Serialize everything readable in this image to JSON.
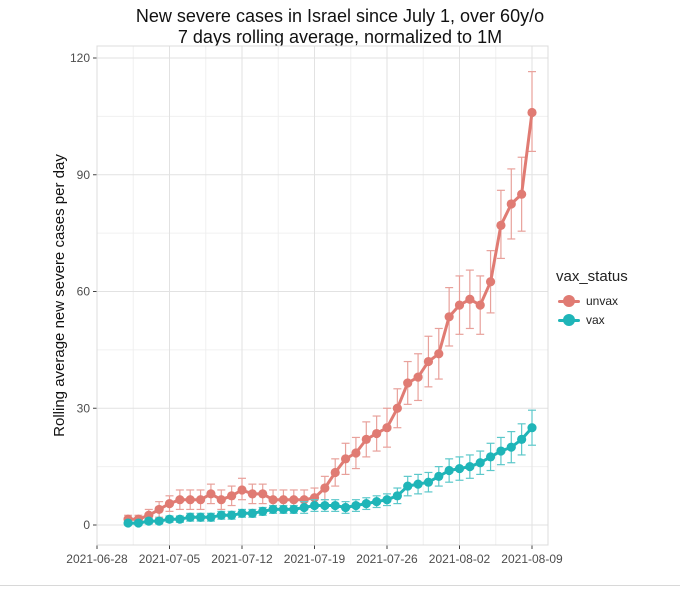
{
  "chart_data": {
    "type": "line",
    "title_lines": [
      "New severe cases in Israel since July 1, over 60y/o",
      "7 days rolling average, normalized to 1M"
    ],
    "xlabel": "",
    "ylabel": "Rolling average new severe cases per day",
    "xlim": [
      "2021-06-28",
      "2021-08-09"
    ],
    "ylim": [
      0,
      120
    ],
    "x_ticks": [
      "2021-06-28",
      "2021-07-05",
      "2021-07-12",
      "2021-07-19",
      "2021-07-26",
      "2021-08-02",
      "2021-08-09"
    ],
    "y_ticks": [
      0,
      30,
      60,
      90,
      120
    ],
    "grid": true,
    "legend": {
      "title": "vax_status",
      "placement": "right"
    },
    "series": [
      {
        "name": "unvax",
        "color": "#e07b73",
        "points": [
          {
            "x": "2021-07-01",
            "y": 1.5,
            "lo": 0.5,
            "hi": 2.5
          },
          {
            "x": "2021-07-02",
            "y": 1.5,
            "lo": 0.5,
            "hi": 2.5
          },
          {
            "x": "2021-07-03",
            "y": 2.5,
            "lo": 1.0,
            "hi": 4.0
          },
          {
            "x": "2021-07-04",
            "y": 4,
            "lo": 2.0,
            "hi": 6.0
          },
          {
            "x": "2021-07-05",
            "y": 5.5,
            "lo": 3.5,
            "hi": 7.5
          },
          {
            "x": "2021-07-06",
            "y": 6.5,
            "lo": 4.0,
            "hi": 9.0
          },
          {
            "x": "2021-07-07",
            "y": 6.5,
            "lo": 4.0,
            "hi": 9.0
          },
          {
            "x": "2021-07-08",
            "y": 6.5,
            "lo": 4.0,
            "hi": 9.0
          },
          {
            "x": "2021-07-09",
            "y": 8,
            "lo": 5.5,
            "hi": 10.5
          },
          {
            "x": "2021-07-10",
            "y": 6.5,
            "lo": 4.0,
            "hi": 9.0
          },
          {
            "x": "2021-07-11",
            "y": 7.5,
            "lo": 5.0,
            "hi": 10.0
          },
          {
            "x": "2021-07-12",
            "y": 9,
            "lo": 6.5,
            "hi": 12.0
          },
          {
            "x": "2021-07-13",
            "y": 8,
            "lo": 5.5,
            "hi": 10.5
          },
          {
            "x": "2021-07-14",
            "y": 8,
            "lo": 5.5,
            "hi": 10.5
          },
          {
            "x": "2021-07-15",
            "y": 6.5,
            "lo": 4.0,
            "hi": 9.0
          },
          {
            "x": "2021-07-16",
            "y": 6.5,
            "lo": 4.0,
            "hi": 9.0
          },
          {
            "x": "2021-07-17",
            "y": 6.5,
            "lo": 4.0,
            "hi": 9.0
          },
          {
            "x": "2021-07-18",
            "y": 6.5,
            "lo": 4.0,
            "hi": 9.0
          },
          {
            "x": "2021-07-19",
            "y": 7,
            "lo": 4.5,
            "hi": 9.5
          },
          {
            "x": "2021-07-20",
            "y": 9.5,
            "lo": 6.5,
            "hi": 12.5
          },
          {
            "x": "2021-07-21",
            "y": 13.5,
            "lo": 10.0,
            "hi": 17.0
          },
          {
            "x": "2021-07-22",
            "y": 17,
            "lo": 13.0,
            "hi": 21.0
          },
          {
            "x": "2021-07-23",
            "y": 18.5,
            "lo": 14.5,
            "hi": 22.5
          },
          {
            "x": "2021-07-24",
            "y": 22,
            "lo": 17.5,
            "hi": 26.5
          },
          {
            "x": "2021-07-25",
            "y": 23.5,
            "lo": 19.0,
            "hi": 28.0
          },
          {
            "x": "2021-07-26",
            "y": 25,
            "lo": 20.0,
            "hi": 30.0
          },
          {
            "x": "2021-07-27",
            "y": 30,
            "lo": 25.0,
            "hi": 35.0
          },
          {
            "x": "2021-07-28",
            "y": 36.5,
            "lo": 31.0,
            "hi": 42.0
          },
          {
            "x": "2021-07-29",
            "y": 38,
            "lo": 32.0,
            "hi": 44.0
          },
          {
            "x": "2021-07-30",
            "y": 42,
            "lo": 35.5,
            "hi": 48.5
          },
          {
            "x": "2021-07-31",
            "y": 44,
            "lo": 37.5,
            "hi": 50.5
          },
          {
            "x": "2021-08-01",
            "y": 53.5,
            "lo": 46.0,
            "hi": 61.0
          },
          {
            "x": "2021-08-02",
            "y": 56.5,
            "lo": 49.0,
            "hi": 64.0
          },
          {
            "x": "2021-08-03",
            "y": 58,
            "lo": 50.5,
            "hi": 65.5
          },
          {
            "x": "2021-08-04",
            "y": 56.5,
            "lo": 49.0,
            "hi": 64.0
          },
          {
            "x": "2021-08-05",
            "y": 62.5,
            "lo": 54.5,
            "hi": 70.5
          },
          {
            "x": "2021-08-06",
            "y": 77,
            "lo": 68.5,
            "hi": 86.0
          },
          {
            "x": "2021-08-07",
            "y": 82.5,
            "lo": 73.5,
            "hi": 91.5
          },
          {
            "x": "2021-08-08",
            "y": 85,
            "lo": 75.5,
            "hi": 94.5
          },
          {
            "x": "2021-08-09",
            "y": 106,
            "lo": 96.0,
            "hi": 116.5
          }
        ]
      },
      {
        "name": "vax",
        "color": "#1fb5b8",
        "points": [
          {
            "x": "2021-07-01",
            "y": 0.5,
            "lo": 0.0,
            "hi": 1.0
          },
          {
            "x": "2021-07-02",
            "y": 0.5,
            "lo": 0.0,
            "hi": 1.0
          },
          {
            "x": "2021-07-03",
            "y": 1,
            "lo": 0.3,
            "hi": 1.7
          },
          {
            "x": "2021-07-04",
            "y": 1,
            "lo": 0.3,
            "hi": 1.7
          },
          {
            "x": "2021-07-05",
            "y": 1.5,
            "lo": 0.7,
            "hi": 2.3
          },
          {
            "x": "2021-07-06",
            "y": 1.5,
            "lo": 0.7,
            "hi": 2.3
          },
          {
            "x": "2021-07-07",
            "y": 2,
            "lo": 1.0,
            "hi": 3.0
          },
          {
            "x": "2021-07-08",
            "y": 2,
            "lo": 1.0,
            "hi": 3.0
          },
          {
            "x": "2021-07-09",
            "y": 2,
            "lo": 1.0,
            "hi": 3.0
          },
          {
            "x": "2021-07-10",
            "y": 2.5,
            "lo": 1.5,
            "hi": 3.5
          },
          {
            "x": "2021-07-11",
            "y": 2.5,
            "lo": 1.5,
            "hi": 3.5
          },
          {
            "x": "2021-07-12",
            "y": 3,
            "lo": 2.0,
            "hi": 4.0
          },
          {
            "x": "2021-07-13",
            "y": 3,
            "lo": 2.0,
            "hi": 4.0
          },
          {
            "x": "2021-07-14",
            "y": 3.5,
            "lo": 2.5,
            "hi": 4.5
          },
          {
            "x": "2021-07-15",
            "y": 4,
            "lo": 3.0,
            "hi": 5.0
          },
          {
            "x": "2021-07-16",
            "y": 4,
            "lo": 3.0,
            "hi": 5.0
          },
          {
            "x": "2021-07-17",
            "y": 4,
            "lo": 3.0,
            "hi": 5.0
          },
          {
            "x": "2021-07-18",
            "y": 4.5,
            "lo": 3.0,
            "hi": 6.0
          },
          {
            "x": "2021-07-19",
            "y": 5,
            "lo": 3.5,
            "hi": 6.5
          },
          {
            "x": "2021-07-20",
            "y": 5,
            "lo": 3.5,
            "hi": 6.5
          },
          {
            "x": "2021-07-21",
            "y": 5,
            "lo": 3.5,
            "hi": 6.5
          },
          {
            "x": "2021-07-22",
            "y": 4.5,
            "lo": 3.0,
            "hi": 6.0
          },
          {
            "x": "2021-07-23",
            "y": 5,
            "lo": 3.5,
            "hi": 6.5
          },
          {
            "x": "2021-07-24",
            "y": 5.5,
            "lo": 4.0,
            "hi": 7.0
          },
          {
            "x": "2021-07-25",
            "y": 6,
            "lo": 4.5,
            "hi": 7.5
          },
          {
            "x": "2021-07-26",
            "y": 6.5,
            "lo": 5.0,
            "hi": 8.0
          },
          {
            "x": "2021-07-27",
            "y": 7.5,
            "lo": 5.5,
            "hi": 9.5
          },
          {
            "x": "2021-07-28",
            "y": 10,
            "lo": 7.5,
            "hi": 12.5
          },
          {
            "x": "2021-07-29",
            "y": 10.5,
            "lo": 8.0,
            "hi": 13.0
          },
          {
            "x": "2021-07-30",
            "y": 11,
            "lo": 8.5,
            "hi": 13.5
          },
          {
            "x": "2021-07-31",
            "y": 12.5,
            "lo": 10.0,
            "hi": 15.0
          },
          {
            "x": "2021-08-01",
            "y": 14,
            "lo": 11.0,
            "hi": 17.0
          },
          {
            "x": "2021-08-02",
            "y": 14.5,
            "lo": 11.5,
            "hi": 17.5
          },
          {
            "x": "2021-08-03",
            "y": 15,
            "lo": 12.0,
            "hi": 18.0
          },
          {
            "x": "2021-08-04",
            "y": 16,
            "lo": 13.0,
            "hi": 19.0
          },
          {
            "x": "2021-08-05",
            "y": 17.5,
            "lo": 14.0,
            "hi": 21.0
          },
          {
            "x": "2021-08-06",
            "y": 19,
            "lo": 15.5,
            "hi": 22.5
          },
          {
            "x": "2021-08-07",
            "y": 20,
            "lo": 16.0,
            "hi": 24.0
          },
          {
            "x": "2021-08-08",
            "y": 22,
            "lo": 18.0,
            "hi": 26.0
          },
          {
            "x": "2021-08-09",
            "y": 25,
            "lo": 20.5,
            "hi": 29.5
          }
        ]
      }
    ]
  }
}
